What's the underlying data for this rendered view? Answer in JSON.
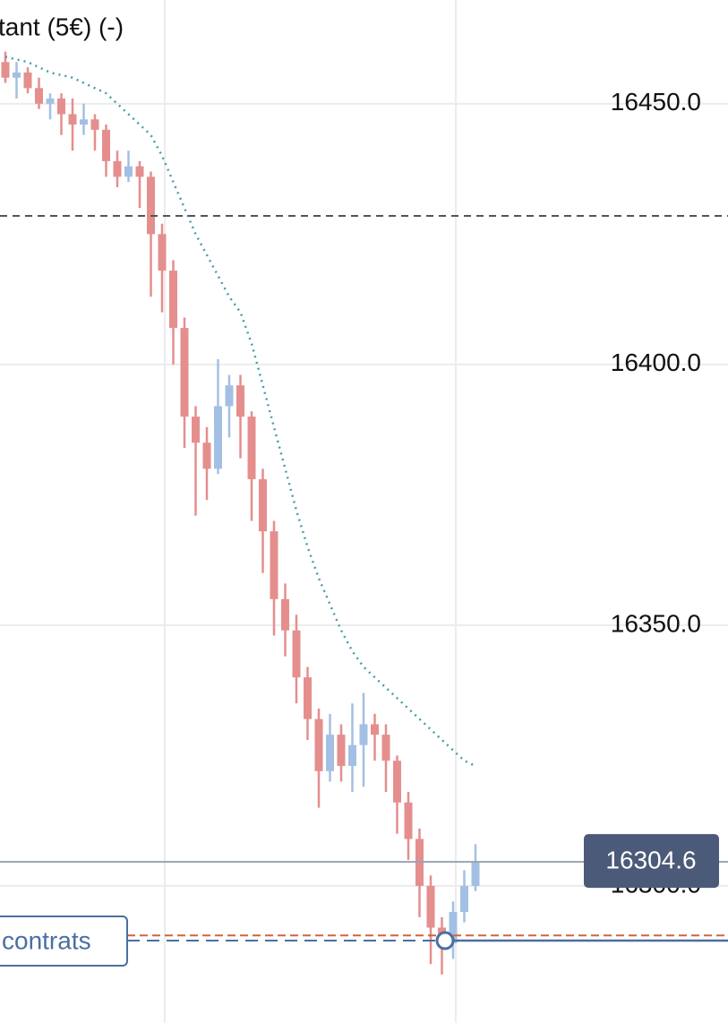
{
  "chart_data": {
    "type": "candlestick",
    "title": "tant (5€) (-)",
    "open": [
      16458,
      16455,
      16456,
      16453,
      16450,
      16451,
      16448,
      16446,
      16447,
      16445,
      16439,
      16436,
      16438,
      16436,
      16425,
      16418,
      16407,
      16390,
      16385,
      16380,
      16392,
      16396,
      16390,
      16378,
      16368,
      16355,
      16349,
      16340,
      16332,
      16322,
      16329,
      16323,
      16327,
      16331,
      16329,
      16324,
      16316,
      16309,
      16300,
      16292,
      16289,
      16295,
      16300
    ],
    "high": [
      16460,
      16458,
      16457,
      16455,
      16452,
      16452,
      16451,
      16450,
      16448,
      16446,
      16441,
      16441,
      16439,
      16437,
      16427,
      16420,
      16409,
      16392,
      16388,
      16401,
      16398,
      16398,
      16391,
      16380,
      16370,
      16358,
      16352,
      16342,
      16334,
      16333,
      16331,
      16335,
      16337,
      16333,
      16331,
      16325,
      16318,
      16311,
      16302,
      16294,
      16297,
      16303,
      16308
    ],
    "low": [
      16454,
      16451,
      16452,
      16449,
      16447,
      16444,
      16441,
      16444,
      16441,
      16436,
      16434,
      16435,
      16430,
      16413,
      16410,
      16400,
      16384,
      16371,
      16374,
      16379,
      16386,
      16382,
      16370,
      16360,
      16348,
      16344,
      16335,
      16328,
      16315,
      16320,
      16320,
      16318,
      16319,
      16324,
      16318,
      16310,
      16305,
      16294,
      16285,
      16283,
      16286,
      16293,
      16299
    ],
    "close": [
      16455,
      16456,
      16453,
      16450,
      16451,
      16448,
      16446,
      16447,
      16445,
      16439,
      16436,
      16438,
      16436,
      16425,
      16418,
      16407,
      16390,
      16385,
      16380,
      16392,
      16396,
      16390,
      16378,
      16368,
      16355,
      16349,
      16340,
      16332,
      16322,
      16329,
      16323,
      16327,
      16331,
      16329,
      16324,
      16316,
      16309,
      16300,
      16292,
      16289,
      16295,
      16300,
      16304.6
    ],
    "up_color": "#a3c0e4",
    "down_color": "#e58e8e",
    "moving_average": {
      "color": "#4a9aa8",
      "values": [
        16459,
        16458.5,
        16458,
        16457,
        16456,
        16455.5,
        16455,
        16454,
        16453,
        16452,
        16450,
        16448,
        16446,
        16444,
        16440,
        16435,
        16430,
        16425,
        16421,
        16417,
        16413,
        16410,
        16404,
        16396,
        16388,
        16380,
        16372,
        16365,
        16359,
        16354,
        16349,
        16345,
        16342,
        16340,
        16338,
        16336,
        16334,
        16332,
        16330,
        16328,
        16326,
        16324,
        16323
      ]
    },
    "ylim": [
      16273.7,
      16469.9
    ],
    "yticks": [
      {
        "value": 16300,
        "label": "16300.0"
      },
      {
        "value": 16350,
        "label": "16350.0"
      },
      {
        "value": 16400,
        "label": "16400.0"
      },
      {
        "value": 16450,
        "label": "16450.0"
      }
    ],
    "grid": true,
    "reference_line": {
      "value": 16428.5,
      "color": "#555555"
    },
    "order_line": {
      "value": 16290.5,
      "color": "#d0643c"
    },
    "position_line": {
      "value": 16289.5,
      "color": "#4a6fa0",
      "label": "contrats"
    },
    "current_price": 16304.6,
    "current_price_color": "#4b5a78"
  }
}
